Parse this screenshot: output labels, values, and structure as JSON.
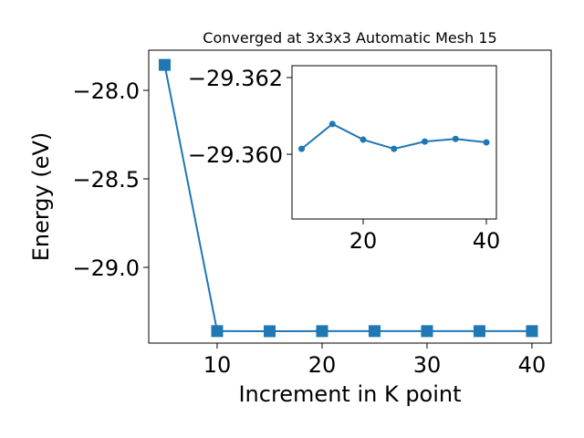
{
  "chart_data": [
    {
      "type": "line",
      "title": "Converged at 3x3x3 Automatic Mesh 15",
      "x_label": "Increment in K point",
      "y_label": "Energy (eV)",
      "x": [
        5,
        10,
        15,
        20,
        25,
        30,
        35,
        40
      ],
      "series": [
        {
          "color": "#1f77b4",
          "marker": "square",
          "values": [
            -27.856,
            -29.36014,
            -29.36079,
            -29.36038,
            -29.36014,
            -29.36033,
            -29.3604,
            -29.36031
          ]
        }
      ],
      "xlim": [
        3.48,
        41.83
      ],
      "xticks": [
        10,
        20,
        30,
        40
      ],
      "ylim": [
        -29.428,
        -27.773
      ],
      "yticks": [
        {
          "value": -28.0,
          "label": "−28.0"
        },
        {
          "value": -28.5,
          "label": "−28.5"
        },
        {
          "value": -29.0,
          "label": "−29.0"
        }
      ]
    },
    {
      "type": "line",
      "x": [
        10,
        15,
        20,
        25,
        30,
        35,
        40
      ],
      "series": [
        {
          "color": "#1f77b4",
          "marker": "circle",
          "values": [
            -29.36014,
            -29.36079,
            -29.36038,
            -29.36014,
            -29.36033,
            -29.3604,
            -29.36031
          ]
        }
      ],
      "xlim": [
        8.44,
        41.63
      ],
      "xticks": [
        20,
        40
      ],
      "ylim": [
        -29.35831,
        -29.36231
      ],
      "yticks": [
        {
          "value": -29.362,
          "label": "−29.362"
        },
        {
          "value": -29.36,
          "label": "−29.360"
        }
      ]
    }
  ]
}
